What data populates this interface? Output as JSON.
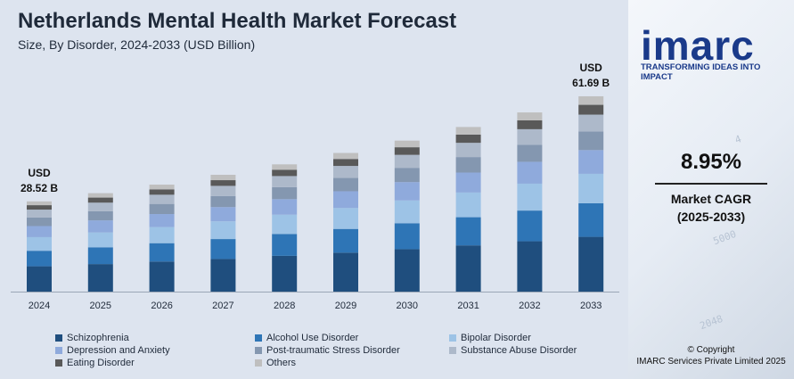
{
  "header": {
    "title": "Netherlands Mental Health Market Forecast",
    "subtitle": "Size, By Disorder, 2024-2033 (USD Billion)"
  },
  "brand": {
    "logo": "imarc",
    "tagline": "TRANSFORMING IDEAS INTO IMPACT"
  },
  "cagr": {
    "value": "8.95%",
    "label_line1": "Market CAGR",
    "label_line2": "(2025-2033)"
  },
  "footer": {
    "line1": "© Copyright",
    "line2": "IMARC Services Private Limited 2025"
  },
  "colors": {
    "Schizophrenia": "#1f4e7e",
    "Alcohol Use Disorder": "#2e75b6",
    "Bipolar Disorder": "#9dc3e6",
    "Depression and Anxiety": "#8faadc",
    "Post-traumatic Stress Disorder": "#8497b0",
    "Substance Abuse Disorder": "#adb9ca",
    "Eating Disorder": "#595959",
    "Others": "#bfbfbf"
  },
  "chart_data": {
    "type": "bar",
    "stacked": true,
    "title": "Netherlands Mental Health Market Forecast",
    "subtitle": "Size, By Disorder, 2024-2033 (USD Billion)",
    "categories": [
      "2024",
      "2025",
      "2026",
      "2027",
      "2028",
      "2029",
      "2030",
      "2031",
      "2032",
      "2033"
    ],
    "totals": [
      28.52,
      31.07,
      33.85,
      36.88,
      40.18,
      43.78,
      47.7,
      51.97,
      56.62,
      61.69
    ],
    "annotations": [
      {
        "category": "2024",
        "line1": "USD",
        "line2": "28.52 B"
      },
      {
        "category": "2033",
        "line1": "USD",
        "line2": "61.69 B"
      }
    ],
    "series": [
      {
        "name": "Schizophrenia",
        "values": [
          8.0,
          8.7,
          9.5,
          10.3,
          11.3,
          12.3,
          13.4,
          14.6,
          15.9,
          17.3
        ]
      },
      {
        "name": "Alcohol Use Disorder",
        "values": [
          4.9,
          5.3,
          5.8,
          6.3,
          6.9,
          7.5,
          8.2,
          8.9,
          9.7,
          10.6
        ]
      },
      {
        "name": "Bipolar Disorder",
        "values": [
          4.3,
          4.7,
          5.1,
          5.6,
          6.1,
          6.6,
          7.2,
          7.8,
          8.5,
          9.3
        ]
      },
      {
        "name": "Depression and Anxiety",
        "values": [
          3.5,
          3.8,
          4.1,
          4.5,
          4.9,
          5.3,
          5.8,
          6.3,
          6.9,
          7.5
        ]
      },
      {
        "name": "Post-traumatic Stress Disorder",
        "values": [
          2.7,
          2.9,
          3.2,
          3.5,
          3.8,
          4.2,
          4.5,
          4.9,
          5.4,
          5.9
        ]
      },
      {
        "name": "Substance Abuse Disorder",
        "values": [
          2.5,
          2.7,
          2.9,
          3.2,
          3.5,
          3.8,
          4.1,
          4.5,
          4.9,
          5.3
        ]
      },
      {
        "name": "Eating Disorder",
        "values": [
          1.4,
          1.6,
          1.7,
          1.8,
          2.0,
          2.2,
          2.4,
          2.6,
          2.8,
          3.1
        ]
      },
      {
        "name": "Others",
        "values": [
          1.2,
          1.4,
          1.5,
          1.7,
          1.7,
          1.9,
          2.1,
          2.4,
          2.5,
          2.7
        ]
      }
    ],
    "legend": [
      "Schizophrenia",
      "Alcohol Use Disorder",
      "Bipolar Disorder",
      "Depression and Anxiety",
      "Post-traumatic Stress Disorder",
      "Substance Abuse Disorder",
      "Eating Disorder",
      "Others"
    ],
    "legend_position": "bottom",
    "grid": false
  }
}
